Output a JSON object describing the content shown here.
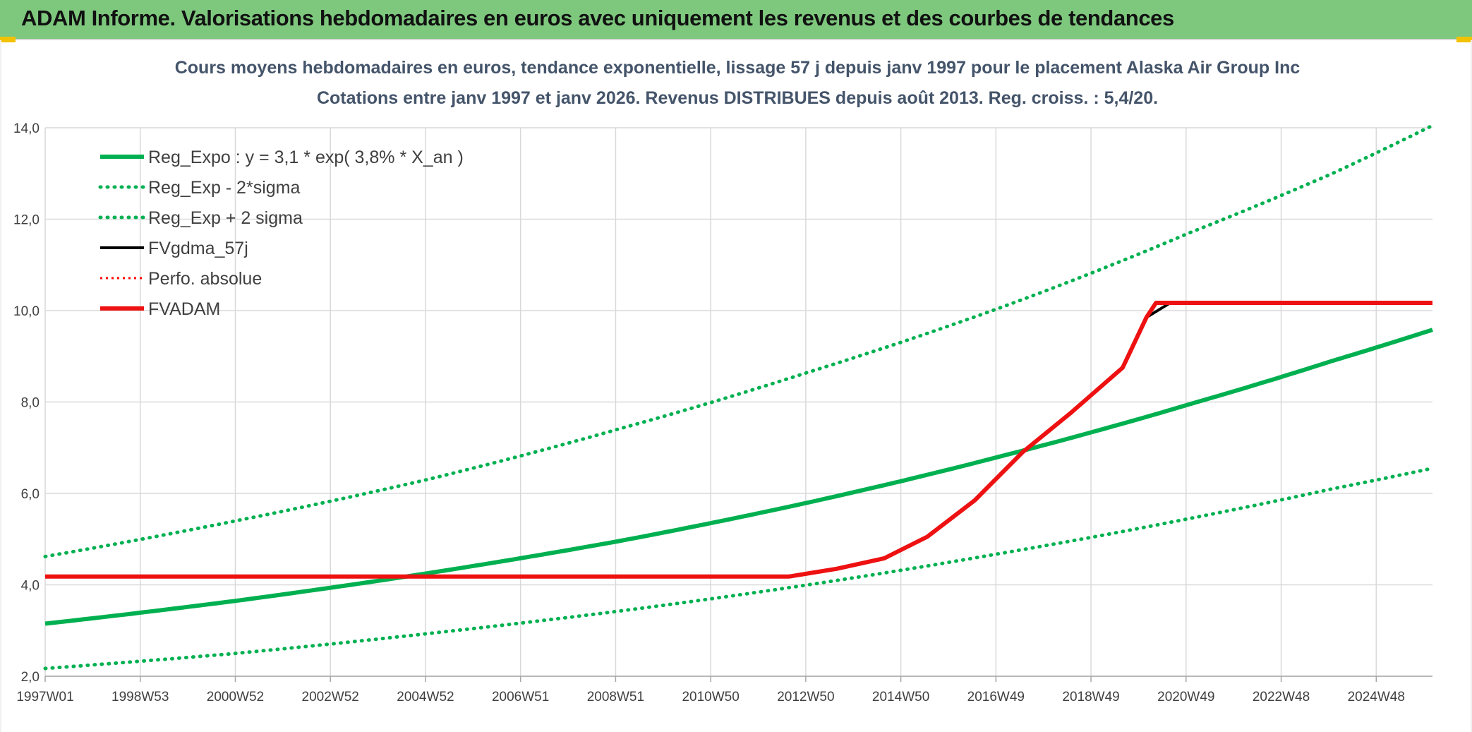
{
  "header": {
    "title": "ADAM Informe. Valorisations hebdomadaires en euros avec uniquement les revenus et des courbes de tendances"
  },
  "colors": {
    "header_bg": "#7ec87e",
    "reg_green": "#00b050",
    "perf_red": "#ff0000",
    "fvadam_red": "#ee1111",
    "fvgdma_black": "#000000",
    "grid": "#d9d9d9",
    "title_text": "#44546a"
  },
  "chart_data": {
    "type": "line",
    "title": "Cours moyens hebdomadaires en euros, tendance exponentielle, lissage 57 j depuis janv 1997 pour le placement Alaska Air Group Inc",
    "subtitle": "Cotations entre janv 1997 et janv 2026. Revenus DISTRIBUES depuis août 2013. Reg. croiss. : 5,4/20.",
    "x_ticks": [
      "1997W01",
      "1998W53",
      "2000W52",
      "2002W52",
      "2004W52",
      "2006W51",
      "2008W51",
      "2010W50",
      "2012W50",
      "2014W50",
      "2016W49",
      "2018W49",
      "2020W49",
      "2022W48",
      "2024W48"
    ],
    "x_range": [
      1997.0,
      2026.1
    ],
    "ylim": [
      2.0,
      14.0
    ],
    "y_ticks": [
      "2,0",
      "4,0",
      "6,0",
      "8,0",
      "10,0",
      "12,0",
      "14,0"
    ],
    "grid": true,
    "legend_position": "top-left",
    "series": [
      {
        "name": "Reg_Expo : y = 3,1 * exp( 3,8% *  X_an )",
        "style": "solid",
        "color": "#00b050",
        "x": [
          1997.0,
          2001.0,
          2005.0,
          2009.0,
          2013.0,
          2017.0,
          2021.0,
          2024.0,
          2026.1
        ],
        "y": [
          3.15,
          3.65,
          4.25,
          4.95,
          5.8,
          6.8,
          7.95,
          8.9,
          9.58
        ]
      },
      {
        "name": "Reg_Exp - 2*sigma",
        "style": "dotted",
        "color": "#00b050",
        "x": [
          1997.0,
          2001.0,
          2005.0,
          2009.0,
          2013.0,
          2017.0,
          2021.0,
          2024.0,
          2026.1
        ],
        "y": [
          2.17,
          2.5,
          2.93,
          3.42,
          4.0,
          4.68,
          5.45,
          6.1,
          6.55
        ]
      },
      {
        "name": "Reg_Exp + 2 sigma",
        "style": "dotted",
        "color": "#00b050",
        "x": [
          1997.0,
          2001.0,
          2005.0,
          2009.0,
          2013.0,
          2017.0,
          2021.0,
          2024.0,
          2026.1
        ],
        "y": [
          4.62,
          5.4,
          6.3,
          7.4,
          8.65,
          10.05,
          11.7,
          13.0,
          14.05
        ]
      },
      {
        "name": "FVgdma_57j",
        "style": "solid",
        "color": "#000000",
        "x": [
          1997.0,
          2012.6,
          2013.6,
          2014.6,
          2015.5,
          2016.5,
          2017.5,
          2018.5,
          2019.6,
          2020.1,
          2020.6,
          2026.1
        ],
        "y": [
          4.18,
          4.18,
          4.35,
          4.58,
          5.05,
          5.85,
          6.9,
          7.75,
          8.75,
          9.85,
          10.17,
          10.17
        ]
      },
      {
        "name": "Perfo. absolue",
        "style": "dotted",
        "color": "#ff0000",
        "x": [
          1997.0,
          2012.6,
          2013.6,
          2014.6,
          2015.5,
          2016.5,
          2017.5,
          2018.5,
          2019.6,
          2020.1,
          2020.3,
          2026.1
        ],
        "y": [
          4.18,
          4.18,
          4.35,
          4.58,
          5.05,
          5.85,
          6.9,
          7.75,
          8.75,
          9.85,
          10.17,
          10.17
        ]
      },
      {
        "name": "FVADAM",
        "style": "solid",
        "color": "#ee1111",
        "x": [
          1997.0,
          2012.6,
          2013.6,
          2014.6,
          2015.5,
          2016.5,
          2017.5,
          2018.5,
          2019.6,
          2020.1,
          2020.3,
          2026.1
        ],
        "y": [
          4.18,
          4.18,
          4.35,
          4.58,
          5.05,
          5.85,
          6.9,
          7.75,
          8.75,
          9.85,
          10.17,
          10.17
        ]
      }
    ]
  }
}
